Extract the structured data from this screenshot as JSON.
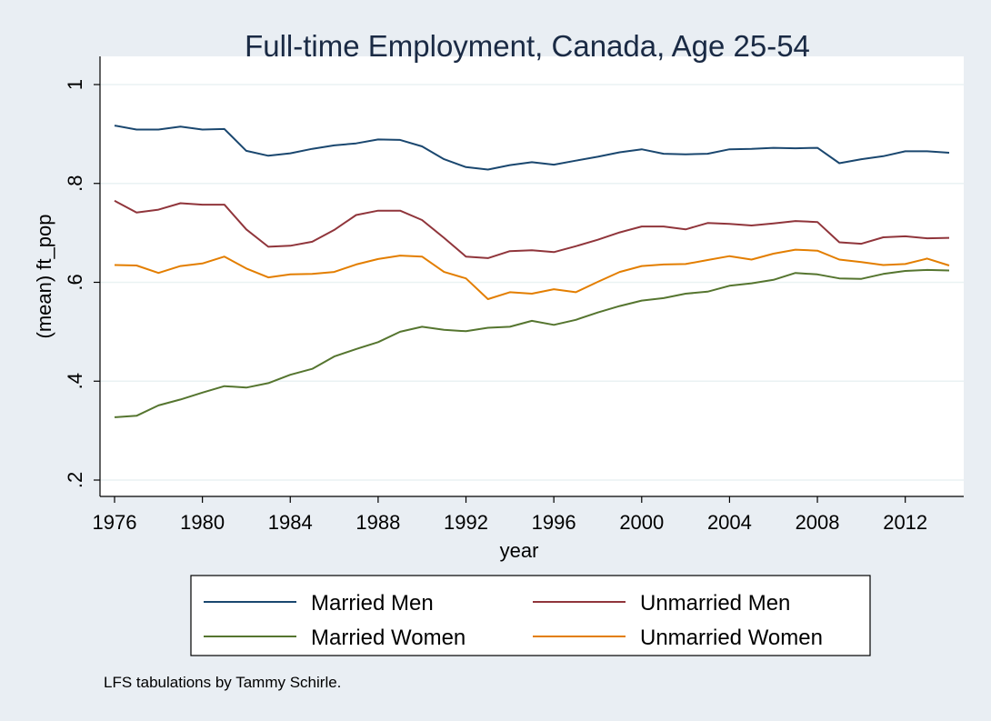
{
  "chart_data": {
    "type": "line",
    "title": "Full-time Employment, Canada, Age 25-54",
    "xlabel": "year",
    "ylabel": "(mean) ft_pop",
    "xlim": [
      1976,
      2014
    ],
    "ylim": [
      0.2,
      1.0
    ],
    "x_ticks": [
      "1976",
      "1980",
      "1984",
      "1988",
      "1992",
      "1996",
      "2000",
      "2004",
      "2008",
      "2012"
    ],
    "x_tick_values": [
      1976,
      1980,
      1984,
      1988,
      1992,
      1996,
      2000,
      2004,
      2008,
      2012
    ],
    "y_ticks": [
      ".2",
      ".4",
      ".6",
      ".8",
      "1"
    ],
    "y_tick_values": [
      0.2,
      0.4,
      0.6,
      0.8,
      1.0
    ],
    "grid": true,
    "legend_position": "bottom",
    "note": "LFS tabulations by Tammy Schirle.",
    "x": [
      1976,
      1977,
      1978,
      1979,
      1980,
      1981,
      1982,
      1983,
      1984,
      1985,
      1986,
      1987,
      1988,
      1989,
      1990,
      1991,
      1992,
      1993,
      1994,
      1995,
      1996,
      1997,
      1998,
      1999,
      2000,
      2001,
      2002,
      2003,
      2004,
      2005,
      2006,
      2007,
      2008,
      2009,
      2010,
      2011,
      2012,
      2013,
      2014
    ],
    "series": [
      {
        "name": "Married Men",
        "color": "#1a476f",
        "values": [
          0.917,
          0.909,
          0.909,
          0.915,
          0.909,
          0.91,
          0.866,
          0.856,
          0.861,
          0.87,
          0.877,
          0.881,
          0.889,
          0.888,
          0.875,
          0.849,
          0.833,
          0.828,
          0.837,
          0.843,
          0.838,
          0.846,
          0.854,
          0.863,
          0.869,
          0.86,
          0.859,
          0.86,
          0.869,
          0.87,
          0.872,
          0.871,
          0.872,
          0.841,
          0.849,
          0.855,
          0.865,
          0.865,
          0.862
        ]
      },
      {
        "name": "Unmarried Men",
        "color": "#90353b",
        "values": [
          0.765,
          0.741,
          0.747,
          0.76,
          0.757,
          0.757,
          0.707,
          0.672,
          0.674,
          0.682,
          0.706,
          0.736,
          0.745,
          0.745,
          0.726,
          0.69,
          0.652,
          0.649,
          0.663,
          0.665,
          0.661,
          0.673,
          0.686,
          0.701,
          0.713,
          0.713,
          0.707,
          0.72,
          0.718,
          0.715,
          0.719,
          0.724,
          0.722,
          0.681,
          0.678,
          0.691,
          0.693,
          0.689,
          0.69
        ]
      },
      {
        "name": "Married Women",
        "color": "#55752f",
        "values": [
          0.327,
          0.33,
          0.351,
          0.363,
          0.377,
          0.39,
          0.387,
          0.396,
          0.413,
          0.425,
          0.45,
          0.465,
          0.479,
          0.5,
          0.51,
          0.504,
          0.501,
          0.508,
          0.51,
          0.522,
          0.514,
          0.524,
          0.539,
          0.552,
          0.563,
          0.568,
          0.577,
          0.581,
          0.593,
          0.598,
          0.605,
          0.619,
          0.616,
          0.608,
          0.607,
          0.617,
          0.623,
          0.625,
          0.624
        ]
      },
      {
        "name": "Unmarried Women",
        "color": "#e37e00",
        "values": [
          0.635,
          0.634,
          0.619,
          0.633,
          0.638,
          0.652,
          0.628,
          0.61,
          0.616,
          0.617,
          0.621,
          0.636,
          0.647,
          0.654,
          0.652,
          0.621,
          0.608,
          0.566,
          0.58,
          0.577,
          0.586,
          0.58,
          0.601,
          0.621,
          0.633,
          0.636,
          0.637,
          0.645,
          0.653,
          0.646,
          0.658,
          0.666,
          0.664,
          0.646,
          0.641,
          0.635,
          0.637,
          0.648,
          0.634
        ]
      }
    ]
  }
}
